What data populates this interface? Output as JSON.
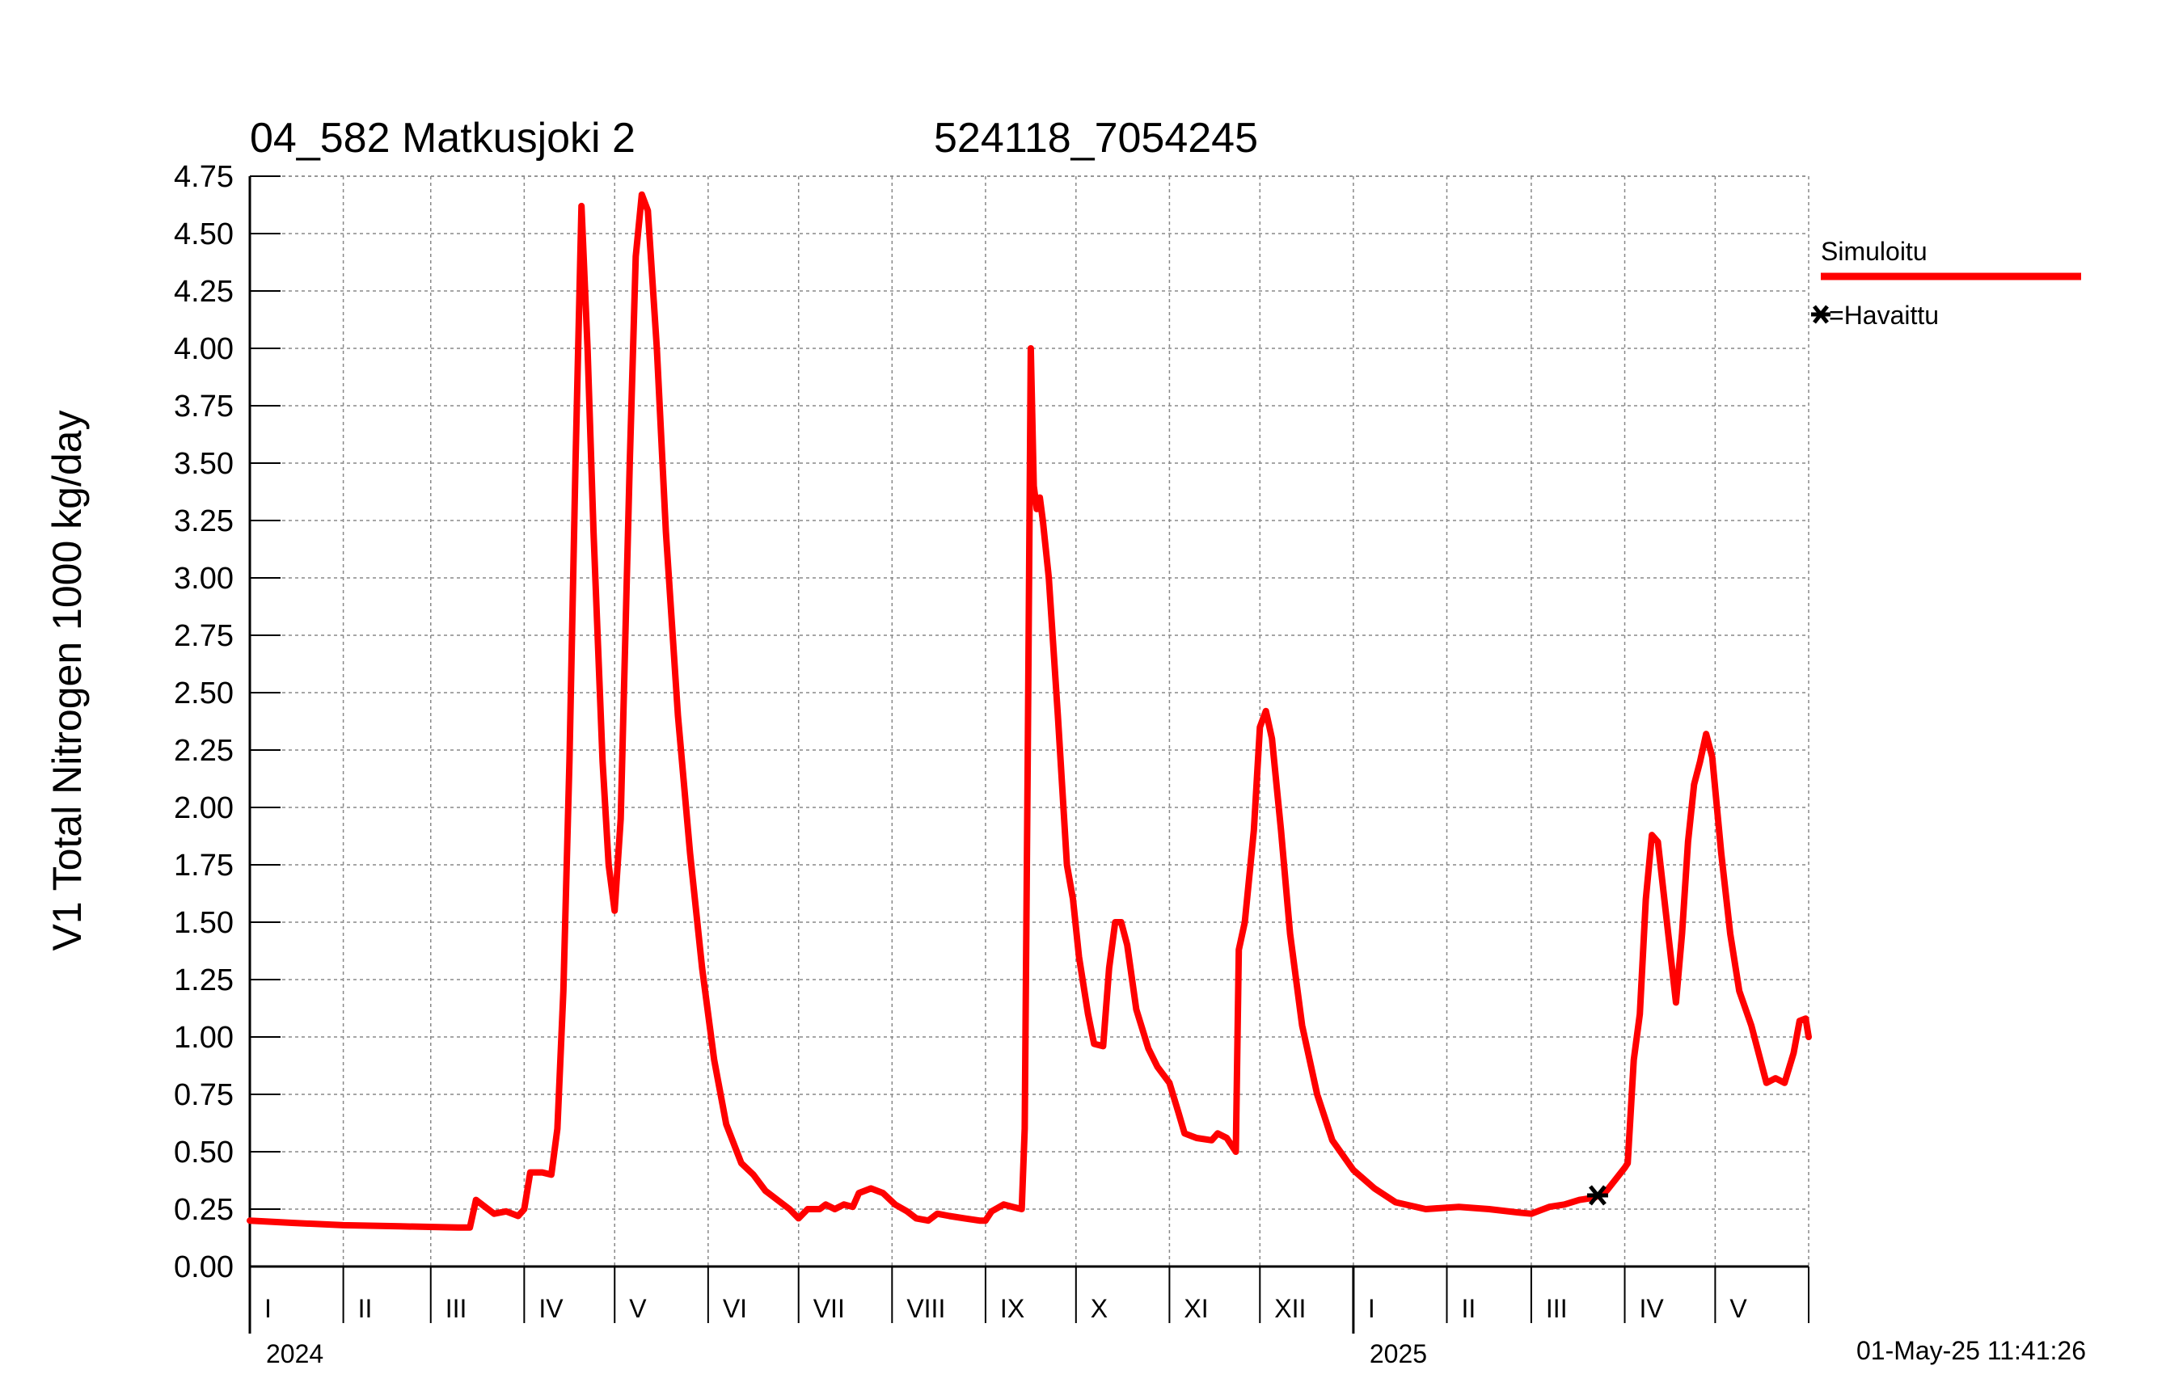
{
  "chart_data": {
    "type": "line",
    "title": "04_582 Matkusjoki 2",
    "subtitle": "524118_7054245",
    "ylabel": "V1 Total Nitrogen 1000 kg/day",
    "ylim": [
      0,
      4.75
    ],
    "yticks": [
      "0.00",
      "0.25",
      "0.50",
      "0.75",
      "1.00",
      "1.25",
      "1.50",
      "1.75",
      "2.00",
      "2.25",
      "2.50",
      "2.75",
      "3.00",
      "3.25",
      "3.50",
      "3.75",
      "4.00",
      "4.25",
      "4.50",
      "4.75"
    ],
    "xlim": [
      "2024-01-01",
      "2025-06-01"
    ],
    "x_month_labels": [
      "I",
      "II",
      "III",
      "IV",
      "V",
      "VI",
      "VII",
      "VIII",
      "IX",
      "X",
      "XI",
      "XII",
      "I",
      "II",
      "III",
      "IV",
      "V"
    ],
    "x_year_labels": [
      "2024",
      "2025"
    ],
    "grid": true,
    "legend_position": "right",
    "timestamp": "01-May-25 11:41:26",
    "series": [
      {
        "name": "Simuloitu",
        "color": "#ff0000",
        "points": [
          [
            "2024-01-01",
            0.2
          ],
          [
            "2024-01-15",
            0.19
          ],
          [
            "2024-02-01",
            0.18
          ],
          [
            "2024-02-20",
            0.175
          ],
          [
            "2024-03-10",
            0.17
          ],
          [
            "2024-03-14",
            0.17
          ],
          [
            "2024-03-16",
            0.29
          ],
          [
            "2024-03-19",
            0.26
          ],
          [
            "2024-03-22",
            0.23
          ],
          [
            "2024-03-26",
            0.24
          ],
          [
            "2024-03-30",
            0.22
          ],
          [
            "2024-04-01",
            0.25
          ],
          [
            "2024-04-03",
            0.41
          ],
          [
            "2024-04-07",
            0.41
          ],
          [
            "2024-04-10",
            0.4
          ],
          [
            "2024-04-12",
            0.6
          ],
          [
            "2024-04-14",
            1.2
          ],
          [
            "2024-04-16",
            2.2
          ],
          [
            "2024-04-18",
            3.5
          ],
          [
            "2024-04-20",
            4.62
          ],
          [
            "2024-04-22",
            4.0
          ],
          [
            "2024-04-24",
            3.2
          ],
          [
            "2024-04-27",
            2.2
          ],
          [
            "2024-04-29",
            1.75
          ],
          [
            "2024-05-01",
            1.55
          ],
          [
            "2024-05-03",
            1.95
          ],
          [
            "2024-05-06",
            3.5
          ],
          [
            "2024-05-08",
            4.4
          ],
          [
            "2024-05-10",
            4.67
          ],
          [
            "2024-05-12",
            4.6
          ],
          [
            "2024-05-15",
            4.0
          ],
          [
            "2024-05-18",
            3.2
          ],
          [
            "2024-05-22",
            2.4
          ],
          [
            "2024-05-26",
            1.8
          ],
          [
            "2024-05-30",
            1.3
          ],
          [
            "2024-06-03",
            0.9
          ],
          [
            "2024-06-07",
            0.62
          ],
          [
            "2024-06-12",
            0.45
          ],
          [
            "2024-06-16",
            0.4
          ],
          [
            "2024-06-20",
            0.33
          ],
          [
            "2024-06-25",
            0.28
          ],
          [
            "2024-06-28",
            0.25
          ],
          [
            "2024-07-01",
            0.21
          ],
          [
            "2024-07-04",
            0.25
          ],
          [
            "2024-07-08",
            0.25
          ],
          [
            "2024-07-10",
            0.27
          ],
          [
            "2024-07-13",
            0.25
          ],
          [
            "2024-07-16",
            0.27
          ],
          [
            "2024-07-19",
            0.26
          ],
          [
            "2024-07-21",
            0.32
          ],
          [
            "2024-07-25",
            0.34
          ],
          [
            "2024-07-29",
            0.32
          ],
          [
            "2024-08-02",
            0.27
          ],
          [
            "2024-08-06",
            0.24
          ],
          [
            "2024-08-09",
            0.21
          ],
          [
            "2024-08-13",
            0.2
          ],
          [
            "2024-08-16",
            0.23
          ],
          [
            "2024-08-20",
            0.22
          ],
          [
            "2024-08-25",
            0.21
          ],
          [
            "2024-08-30",
            0.2
          ],
          [
            "2024-09-01",
            0.2
          ],
          [
            "2024-09-03",
            0.24
          ],
          [
            "2024-09-07",
            0.27
          ],
          [
            "2024-09-10",
            0.26
          ],
          [
            "2024-09-13",
            0.25
          ],
          [
            "2024-09-14",
            0.6
          ],
          [
            "2024-09-15",
            2.2
          ],
          [
            "2024-09-16",
            4.0
          ],
          [
            "2024-09-17",
            3.4
          ],
          [
            "2024-09-18",
            3.3
          ],
          [
            "2024-09-19",
            3.35
          ],
          [
            "2024-09-20",
            3.25
          ],
          [
            "2024-09-22",
            3.0
          ],
          [
            "2024-09-25",
            2.4
          ],
          [
            "2024-09-28",
            1.75
          ],
          [
            "2024-09-30",
            1.6
          ],
          [
            "2024-10-02",
            1.35
          ],
          [
            "2024-10-05",
            1.1
          ],
          [
            "2024-10-07",
            0.97
          ],
          [
            "2024-10-10",
            0.96
          ],
          [
            "2024-10-12",
            1.3
          ],
          [
            "2024-10-14",
            1.5
          ],
          [
            "2024-10-16",
            1.5
          ],
          [
            "2024-10-18",
            1.4
          ],
          [
            "2024-10-21",
            1.12
          ],
          [
            "2024-10-25",
            0.95
          ],
          [
            "2024-10-28",
            0.87
          ],
          [
            "2024-11-01",
            0.8
          ],
          [
            "2024-11-04",
            0.67
          ],
          [
            "2024-11-06",
            0.58
          ],
          [
            "2024-11-10",
            0.56
          ],
          [
            "2024-11-15",
            0.55
          ],
          [
            "2024-11-17",
            0.58
          ],
          [
            "2024-11-20",
            0.56
          ],
          [
            "2024-11-23",
            0.5
          ],
          [
            "2024-11-24",
            1.38
          ],
          [
            "2024-11-26",
            1.5
          ],
          [
            "2024-11-29",
            1.9
          ],
          [
            "2024-12-01",
            2.35
          ],
          [
            "2024-12-03",
            2.42
          ],
          [
            "2024-12-05",
            2.3
          ],
          [
            "2024-12-08",
            1.9
          ],
          [
            "2024-12-11",
            1.45
          ],
          [
            "2024-12-15",
            1.05
          ],
          [
            "2024-12-20",
            0.75
          ],
          [
            "2024-12-25",
            0.55
          ],
          [
            "2025-01-01",
            0.42
          ],
          [
            "2025-01-08",
            0.34
          ],
          [
            "2025-01-15",
            0.28
          ],
          [
            "2025-01-25",
            0.25
          ],
          [
            "2025-02-05",
            0.26
          ],
          [
            "2025-02-15",
            0.25
          ],
          [
            "2025-02-25",
            0.235
          ],
          [
            "2025-03-01",
            0.23
          ],
          [
            "2025-03-07",
            0.26
          ],
          [
            "2025-03-12",
            0.27
          ],
          [
            "2025-03-17",
            0.29
          ],
          [
            "2025-03-22",
            0.3
          ],
          [
            "2025-03-26",
            0.33
          ],
          [
            "2025-03-29",
            0.38
          ],
          [
            "2025-04-01",
            0.43
          ],
          [
            "2025-04-02",
            0.45
          ],
          [
            "2025-04-04",
            0.9
          ],
          [
            "2025-04-06",
            1.1
          ],
          [
            "2025-04-08",
            1.6
          ],
          [
            "2025-04-10",
            1.88
          ],
          [
            "2025-04-12",
            1.85
          ],
          [
            "2025-04-15",
            1.5
          ],
          [
            "2025-04-18",
            1.15
          ],
          [
            "2025-04-20",
            1.45
          ],
          [
            "2025-04-22",
            1.85
          ],
          [
            "2025-04-24",
            2.1
          ],
          [
            "2025-04-26",
            2.2
          ],
          [
            "2025-04-28",
            2.32
          ],
          [
            "2025-04-30",
            2.22
          ],
          [
            "2025-05-03",
            1.8
          ],
          [
            "2025-05-06",
            1.45
          ],
          [
            "2025-05-09",
            1.2
          ],
          [
            "2025-05-13",
            1.05
          ],
          [
            "2025-05-16",
            0.9
          ],
          [
            "2025-05-18",
            0.8
          ],
          [
            "2025-05-21",
            0.82
          ],
          [
            "2025-05-24",
            0.8
          ],
          [
            "2025-05-27",
            0.93
          ],
          [
            "2025-05-29",
            1.07
          ],
          [
            "2025-05-31",
            1.08
          ],
          [
            "2025-06-01",
            1.0
          ]
        ]
      },
      {
        "name": "Havaittu",
        "legend_label": "=Havaittu",
        "color": "#000000",
        "marker": "asterisk",
        "points": [
          [
            "2025-03-23",
            0.31
          ]
        ]
      }
    ]
  }
}
